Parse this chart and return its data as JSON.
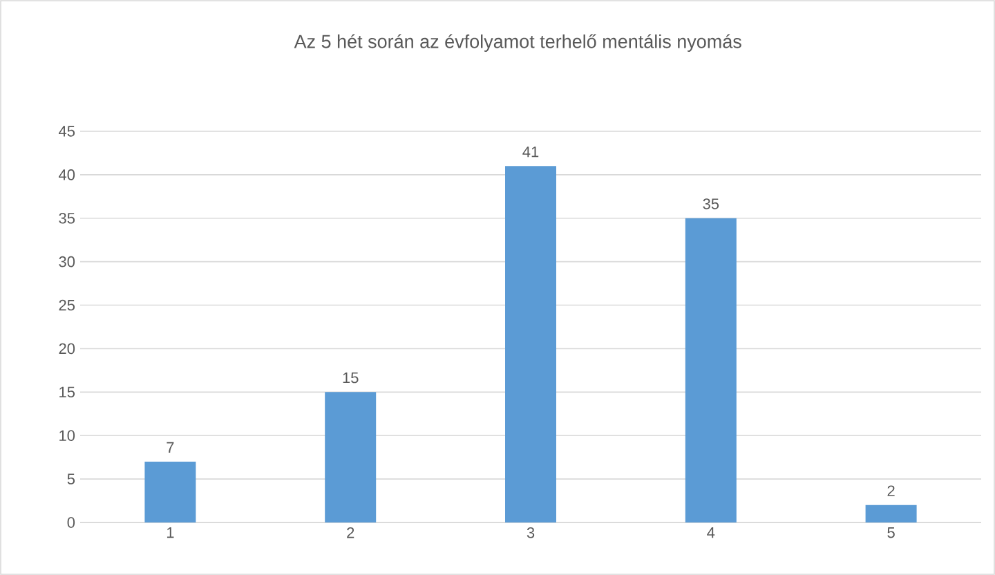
{
  "chart_data": {
    "type": "bar",
    "title": "Az 5 hét során az évfolyamot terhelő mentális nyomás",
    "categories": [
      "1",
      "2",
      "3",
      "4",
      "5"
    ],
    "values": [
      7,
      15,
      41,
      35,
      2
    ],
    "color": "#5b9bd5",
    "ylim": [
      0,
      45
    ],
    "yticks": [
      0,
      5,
      10,
      15,
      20,
      25,
      30,
      35,
      40,
      45
    ],
    "grid": "y",
    "data_labels": true
  }
}
